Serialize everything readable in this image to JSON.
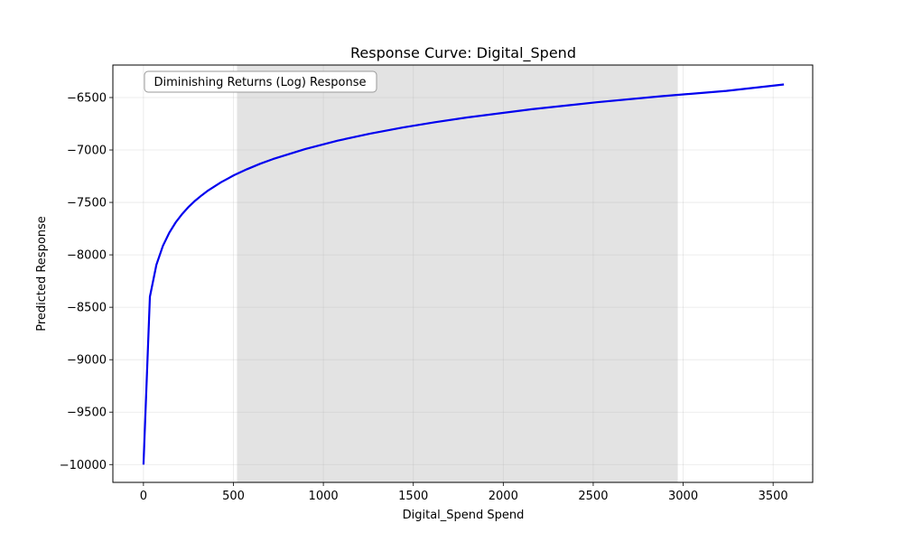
{
  "chart_data": {
    "type": "line",
    "title": "Response Curve: Digital_Spend",
    "xlabel": "Digital_Spend Spend",
    "ylabel": "Predicted Response",
    "xlim": [
      -170,
      3720
    ],
    "ylim": [
      -10170,
      -6190
    ],
    "x_ticks": [
      0,
      500,
      1000,
      1500,
      2000,
      2500,
      3000,
      3500
    ],
    "y_ticks": [
      -10000,
      -9500,
      -9000,
      -8500,
      -8000,
      -7500,
      -7000,
      -6500
    ],
    "x_tick_labels": [
      "0",
      "500",
      "1000",
      "1500",
      "2000",
      "2500",
      "3000",
      "3500"
    ],
    "y_tick_labels": [
      "−10000",
      "−9500",
      "−9000",
      "−8500",
      "−8000",
      "−7500",
      "−7000",
      "−6500"
    ],
    "grid": true,
    "shaded_region": {
      "x_start": 520,
      "x_end": 2970,
      "color": "#e3e3e3"
    },
    "annotation": "Diminishing Returns (Log) Response",
    "series": [
      {
        "color": "#0000ee",
        "x": [
          0,
          36,
          72,
          108,
          144,
          180,
          216,
          252,
          288,
          324,
          360,
          432,
          504,
          576,
          648,
          720,
          900,
          1080,
          1260,
          1440,
          1620,
          1800,
          2160,
          2520,
          2880,
          3240,
          3560
        ],
        "y": [
          -10000,
          -8400,
          -8095,
          -7915,
          -7787,
          -7689,
          -7609,
          -7541,
          -7483,
          -7432,
          -7386,
          -7307,
          -7240,
          -7183,
          -7132,
          -7087,
          -6990,
          -6911,
          -6844,
          -6786,
          -6735,
          -6690,
          -6611,
          -6545,
          -6487,
          -6436,
          -6375
        ]
      }
    ]
  }
}
